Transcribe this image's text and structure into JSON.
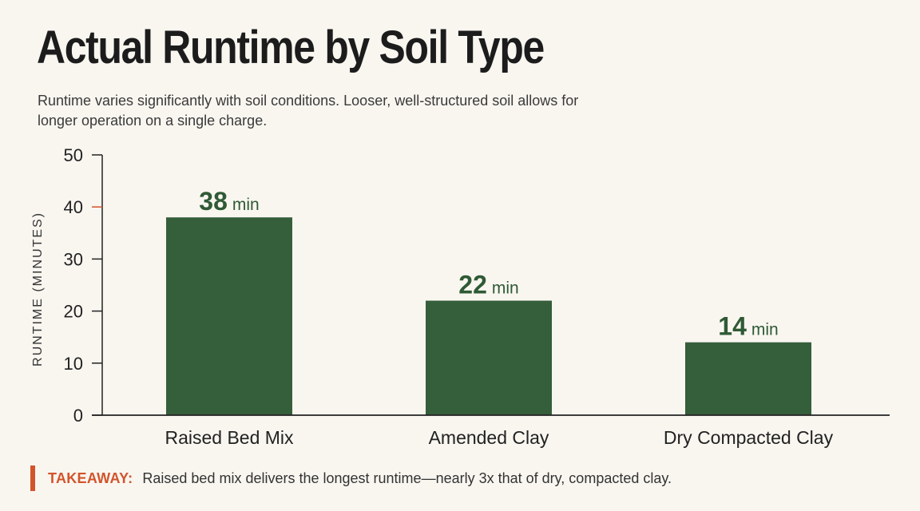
{
  "header": {
    "title": "Actual Runtime by Soil Type",
    "subtitle": "Runtime varies significantly with soil conditions. Looser, well-structured soil allows for longer operation on a single charge."
  },
  "chart_data": {
    "type": "bar",
    "title": "Actual Runtime by Soil Type",
    "ylabel": "RUNTIME (MINUTES)",
    "xlabel": "",
    "categories": [
      "Raised Bed Mix",
      "Amended Clay",
      "Dry Compacted Clay"
    ],
    "values": [
      38,
      22,
      14
    ],
    "value_labels": [
      "38",
      "22",
      "14"
    ],
    "value_unit": "min",
    "ylim": [
      0,
      50
    ],
    "yticks": [
      0,
      10,
      20,
      30,
      40,
      50
    ],
    "highlighted_tick": 40,
    "grid": false,
    "legend": "none",
    "colors": {
      "bar": "#355e3b",
      "label": "#2f5a35",
      "highlight": "#d3542b",
      "axis": "#222222"
    }
  },
  "takeaway": {
    "label": "TAKEAWAY:",
    "text": "Raised bed mix delivers the longest runtime—nearly 3x that of dry, compacted clay."
  }
}
